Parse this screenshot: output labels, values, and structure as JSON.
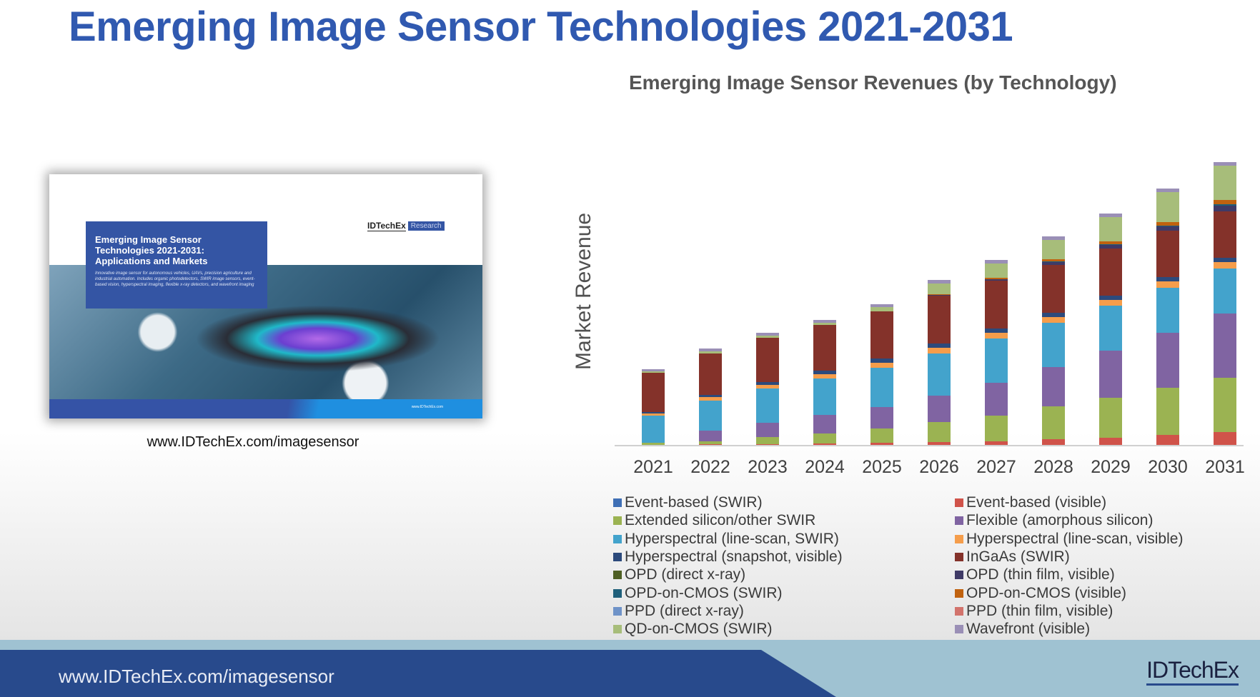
{
  "slide": {
    "title": "Emerging Image Sensor Technologies 2021-2031"
  },
  "cover": {
    "box_title": "Emerging Image Sensor Technologies 2021-2031: Applications and Markets",
    "box_desc": "Innovative image sensor for autonomous vehicles, UAVs, precision agriculture and industrial automation. Includes organic photodetectors, SWIR image sensors, event-based vision, hyperspectral imaging, flexible x-ray detectors, and wavefront imaging",
    "brand_name": "IDTechEx",
    "brand_tag": "Research",
    "footer_url": "www.IDTechEx.com",
    "caption": "www.IDTechEx.com/imagesensor"
  },
  "footer": {
    "url": "www.IDTechEx.com/imagesensor",
    "logo": "IDTechEx"
  },
  "chart_data": {
    "type": "bar",
    "stacked": true,
    "title": "Emerging Image Sensor Revenues (by Technology)",
    "xlabel": "",
    "ylabel": "Market Revenue",
    "ylim_note": "No y-axis tick labels shown; values are relative estimates from bar heights",
    "ylim": [
      0,
      410
    ],
    "grid": false,
    "legend_position": "bottom",
    "categories": [
      "2021",
      "2022",
      "2023",
      "2024",
      "2025",
      "2026",
      "2027",
      "2028",
      "2029",
      "2030",
      "2031"
    ],
    "series": [
      {
        "name": "Event-based (visible)",
        "color": "#d0534a",
        "values": [
          0,
          1,
          1,
          2,
          3,
          4,
          5,
          8,
          10,
          14,
          18
        ]
      },
      {
        "name": "Event-based (SWIR)",
        "color": "#3f6fb5",
        "values": [
          0,
          0,
          0,
          0,
          0,
          0,
          0,
          0,
          0,
          0,
          0
        ]
      },
      {
        "name": "Extended silicon/other SWIR",
        "color": "#9bb352",
        "values": [
          3,
          4,
          10,
          14,
          20,
          28,
          36,
          46,
          56,
          66,
          76
        ]
      },
      {
        "name": "Flexible (amorphous silicon)",
        "color": "#8064a2",
        "values": [
          0,
          15,
          20,
          26,
          30,
          37,
          46,
          55,
          66,
          77,
          90
        ]
      },
      {
        "name": "Hyperspectral (line-scan, SWIR)",
        "color": "#43a3cc",
        "values": [
          38,
          42,
          48,
          51,
          55,
          59,
          62,
          62,
          63,
          63,
          63
        ]
      },
      {
        "name": "Hyperspectral (line-scan, visible)",
        "color": "#f59d4b",
        "values": [
          3,
          5,
          5,
          6,
          7,
          8,
          8,
          8,
          8,
          9,
          9
        ]
      },
      {
        "name": "Hyperspectral (snapshot, visible)",
        "color": "#2c4a7c",
        "values": [
          2,
          3,
          4,
          5,
          6,
          6,
          6,
          6,
          6,
          6,
          6
        ]
      },
      {
        "name": "InGaAs (SWIR)",
        "color": "#84322a",
        "values": [
          55,
          58,
          62,
          64,
          66,
          67,
          67,
          67,
          66,
          65,
          65
        ]
      },
      {
        "name": "OPD (direct x-ray)",
        "color": "#4e5f23",
        "values": [
          0,
          0,
          0,
          0,
          0,
          0,
          0,
          0,
          0,
          0,
          0
        ]
      },
      {
        "name": "OPD (thin film, visible)",
        "color": "#3f3a66",
        "values": [
          0,
          0,
          0,
          0,
          0,
          1,
          2,
          4,
          5,
          6,
          8
        ]
      },
      {
        "name": "OPD-on-CMOS (SWIR)",
        "color": "#1f5f7a",
        "values": [
          0,
          0,
          0,
          0,
          0,
          0,
          0,
          1,
          1,
          1,
          2
        ]
      },
      {
        "name": "OPD-on-CMOS (visible)",
        "color": "#c0620f",
        "values": [
          0,
          0,
          0,
          0,
          0,
          1,
          2,
          3,
          4,
          5,
          6
        ]
      },
      {
        "name": "PPD (direct x-ray)",
        "color": "#6f93c8",
        "values": [
          0,
          0,
          0,
          0,
          0,
          0,
          0,
          0,
          0,
          0,
          0
        ]
      },
      {
        "name": "PPD (thin film, visible)",
        "color": "#d2736c",
        "values": [
          0,
          0,
          0,
          0,
          0,
          0,
          0,
          0,
          0,
          0,
          0
        ]
      },
      {
        "name": "QD-on-CMOS (SWIR)",
        "color": "#a7bd7a",
        "values": [
          2,
          3,
          3,
          3,
          6,
          15,
          20,
          27,
          34,
          42,
          48
        ]
      },
      {
        "name": "Wavefront (visible)",
        "color": "#9a8fb6",
        "values": [
          3,
          4,
          4,
          4,
          4,
          5,
          5,
          5,
          5,
          5,
          5
        ]
      }
    ]
  },
  "legend": {
    "left": [
      {
        "label": "Event-based (SWIR)",
        "color": "#3f6fb5"
      },
      {
        "label": "Extended silicon/other SWIR",
        "color": "#9bb352"
      },
      {
        "label": "Hyperspectral (line-scan, SWIR)",
        "color": "#43a3cc"
      },
      {
        "label": "Hyperspectral (snapshot, visible)",
        "color": "#2c4a7c"
      },
      {
        "label": "OPD (direct x-ray)",
        "color": "#4e5f23"
      },
      {
        "label": "OPD-on-CMOS (SWIR)",
        "color": "#1f5f7a"
      },
      {
        "label": "PPD (direct x-ray)",
        "color": "#6f93c8"
      },
      {
        "label": "QD-on-CMOS (SWIR)",
        "color": "#a7bd7a"
      }
    ],
    "right": [
      {
        "label": "Event-based (visible)",
        "color": "#d0534a"
      },
      {
        "label": "Flexible (amorphous silicon)",
        "color": "#8064a2"
      },
      {
        "label": "Hyperspectral (line-scan, visible)",
        "color": "#f59d4b"
      },
      {
        "label": "InGaAs (SWIR)",
        "color": "#84322a"
      },
      {
        "label": "OPD (thin film, visible)",
        "color": "#3f3a66"
      },
      {
        "label": "OPD-on-CMOS (visible)",
        "color": "#c0620f"
      },
      {
        "label": "PPD (thin film, visible)",
        "color": "#d2736c"
      },
      {
        "label": "Wavefront (visible)",
        "color": "#9a8fb6"
      }
    ]
  }
}
